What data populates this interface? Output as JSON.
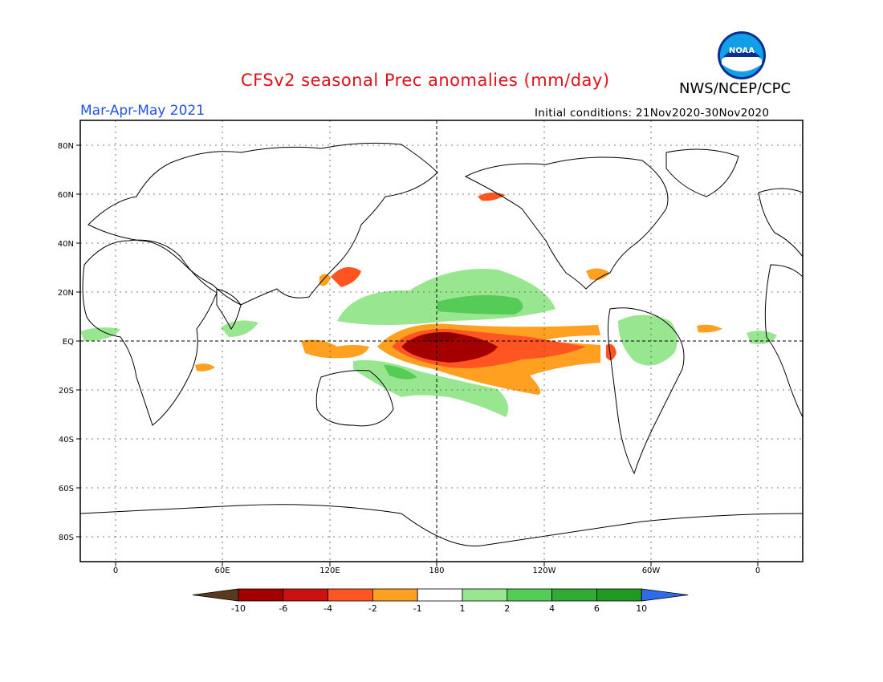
{
  "title": "CFSv2 seasonal Prec anomalies (mm/day)",
  "agency": "NWS/NCEP/CPC",
  "season": "Mar-Apr-May 2021",
  "initial_conditions": "Initial conditions: 21Nov2020-30Nov2020",
  "logo": {
    "text": "NOAA"
  },
  "axes": {
    "lat_labels": [
      "80N",
      "60N",
      "40N",
      "20N",
      "EQ",
      "20S",
      "40S",
      "60S",
      "80S"
    ],
    "lon_labels": [
      "0",
      "60E",
      "120E",
      "180",
      "120W",
      "60W",
      "0"
    ]
  },
  "colorbar": {
    "labels": [
      "-10",
      "-6",
      "-4",
      "-2",
      "-1",
      "1",
      "2",
      "4",
      "6",
      "10"
    ],
    "colors": [
      "#5a3a1e",
      "#a50000",
      "#cc1111",
      "#ff5522",
      "#ffa020",
      "#ffffff",
      "#99e690",
      "#55cc55",
      "#33aa33",
      "#229922",
      "#2e6bea"
    ]
  },
  "colors": {
    "title": "#e0101a",
    "season": "#2255dd",
    "strong_negative": "#a50000",
    "negative": "#ff5522",
    "weak_negative": "#ffa020",
    "weak_positive": "#99e690",
    "positive": "#55cc55"
  }
}
